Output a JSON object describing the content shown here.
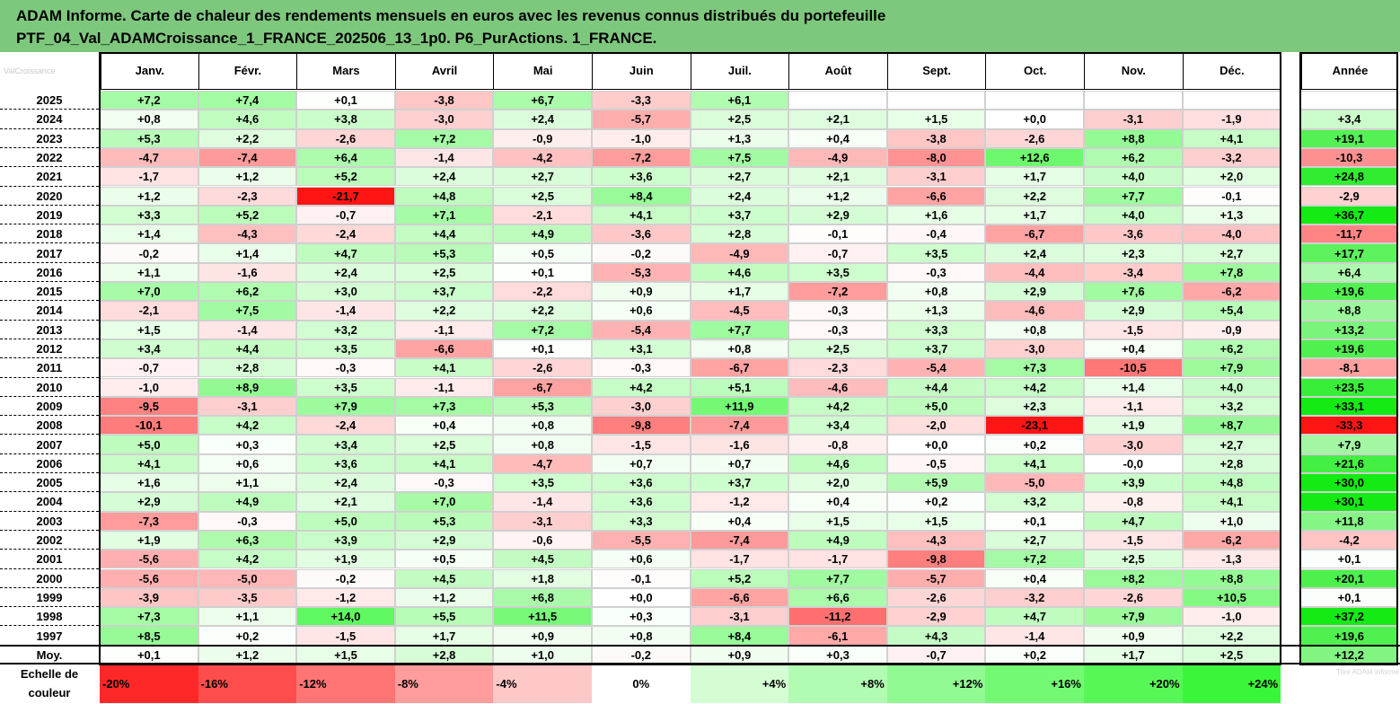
{
  "header": {
    "title_line1": "ADAM Informe. Carte de chaleur des rendements mensuels en euros avec les revenus connus distribués du portefeuille",
    "title_line2": "PTF_04_Val_ADAMCroissance_1_FRANCE_202506_13_1p0. P6_PurActions. 1_FRANCE."
  },
  "watermark_text": "ValCroissance",
  "watermark2_text": "Titre  ADAM Informe",
  "chart_data": {
    "type": "heatmap",
    "title": "ADAM Informe. Carte de chaleur des rendements mensuels en euros avec les revenus connus distribués du portefeuille PTF_04_Val_ADAMCroissance_1_FRANCE_202506_13_1p0. P6_PurActions. 1_FRANCE.",
    "columns": [
      "Janv.",
      "Févr.",
      "Mars",
      "Avril",
      "Mai",
      "Juin",
      "Juil.",
      "Août",
      "Sept.",
      "Oct.",
      "Nov.",
      "Déc."
    ],
    "year_column": "Année",
    "rows": [
      {
        "year": "2025",
        "values": [
          "+7,2",
          "+7,4",
          "+0,1",
          "-3,8",
          "+6,7",
          "-3,3",
          "+6,1",
          "",
          "",
          "",
          "",
          ""
        ],
        "annual": ""
      },
      {
        "year": "2024",
        "values": [
          "+0,8",
          "+4,6",
          "+3,8",
          "-3,0",
          "+2,4",
          "-5,7",
          "+2,5",
          "+2,1",
          "+1,5",
          "+0,0",
          "-3,1",
          "-1,9"
        ],
        "annual": "+3,4"
      },
      {
        "year": "2023",
        "values": [
          "+5,3",
          "+2,2",
          "-2,6",
          "+7,2",
          "-0,9",
          "-1,0",
          "+1,3",
          "+0,4",
          "-3,8",
          "-2,6",
          "+8,8",
          "+4,1"
        ],
        "annual": "+19,1"
      },
      {
        "year": "2022",
        "values": [
          "-4,7",
          "-7,4",
          "+6,4",
          "-1,4",
          "-4,2",
          "-7,2",
          "+7,5",
          "-4,9",
          "-8,0",
          "+12,6",
          "+6,2",
          "-3,2"
        ],
        "annual": "-10,3"
      },
      {
        "year": "2021",
        "values": [
          "-1,7",
          "+1,2",
          "+5,2",
          "+2,4",
          "+2,7",
          "+3,6",
          "+2,7",
          "+2,1",
          "-3,1",
          "+1,7",
          "+4,0",
          "+2,0"
        ],
        "annual": "+24,8"
      },
      {
        "year": "2020",
        "values": [
          "+1,2",
          "-2,3",
          "-21,7",
          "+4,8",
          "+2,5",
          "+8,4",
          "+2,4",
          "+1,2",
          "-6,6",
          "+2,2",
          "+7,7",
          "-0,1"
        ],
        "annual": "-2,9"
      },
      {
        "year": "2019",
        "values": [
          "+3,3",
          "+5,2",
          "-0,7",
          "+7,1",
          "-2,1",
          "+4,1",
          "+3,7",
          "+2,9",
          "+1,6",
          "+1,7",
          "+4,0",
          "+1,3"
        ],
        "annual": "+36,7"
      },
      {
        "year": "2018",
        "values": [
          "+1,4",
          "-4,3",
          "-2,4",
          "+4,4",
          "+4,9",
          "-3,6",
          "+2,8",
          "-0,1",
          "-0,4",
          "-6,7",
          "-3,6",
          "-4,0"
        ],
        "annual": "-11,7"
      },
      {
        "year": "2017",
        "values": [
          "-0,2",
          "+1,4",
          "+4,7",
          "+5,3",
          "+0,5",
          "-0,2",
          "-4,9",
          "-0,7",
          "+3,5",
          "+2,4",
          "+2,3",
          "+2,7"
        ],
        "annual": "+17,7"
      },
      {
        "year": "2016",
        "values": [
          "+1,1",
          "-1,6",
          "+2,4",
          "+2,5",
          "+0,1",
          "-5,3",
          "+4,6",
          "+3,5",
          "-0,3",
          "-4,4",
          "-3,4",
          "+7,8"
        ],
        "annual": "+6,4"
      },
      {
        "year": "2015",
        "values": [
          "+7,0",
          "+6,2",
          "+3,0",
          "+3,7",
          "-2,2",
          "+0,9",
          "+1,7",
          "-7,2",
          "+0,8",
          "+2,9",
          "+7,6",
          "-6,2"
        ],
        "annual": "+19,6"
      },
      {
        "year": "2014",
        "values": [
          "-2,1",
          "+7,5",
          "-1,4",
          "+2,2",
          "+2,2",
          "+0,6",
          "-4,5",
          "-0,3",
          "+1,3",
          "-4,6",
          "+2,9",
          "+5,4"
        ],
        "annual": "+8,8"
      },
      {
        "year": "2013",
        "values": [
          "+1,5",
          "-1,4",
          "+3,2",
          "-1,1",
          "+7,2",
          "-5,4",
          "+7,7",
          "-0,3",
          "+3,3",
          "+0,8",
          "-1,5",
          "-0,9"
        ],
        "annual": "+13,2"
      },
      {
        "year": "2012",
        "values": [
          "+3,4",
          "+4,4",
          "+3,5",
          "-6,6",
          "+0,1",
          "+3,1",
          "+0,8",
          "+2,5",
          "+3,7",
          "-3,0",
          "+0,4",
          "+6,2"
        ],
        "annual": "+19,6"
      },
      {
        "year": "2011",
        "values": [
          "-0,7",
          "+2,8",
          "-0,3",
          "+4,1",
          "-2,6",
          "-0,3",
          "-6,7",
          "-2,3",
          "-5,4",
          "+7,3",
          "-10,5",
          "+7,9"
        ],
        "annual": "-8,1"
      },
      {
        "year": "2010",
        "values": [
          "-1,0",
          "+8,9",
          "+3,5",
          "-1,1",
          "-6,7",
          "+4,2",
          "+5,1",
          "-4,6",
          "+4,4",
          "+4,2",
          "+1,4",
          "+4,0"
        ],
        "annual": "+23,5"
      },
      {
        "year": "2009",
        "values": [
          "-9,5",
          "-3,1",
          "+7,9",
          "+7,3",
          "+5,3",
          "-3,0",
          "+11,9",
          "+4,2",
          "+5,0",
          "+2,3",
          "-1,1",
          "+3,2"
        ],
        "annual": "+33,1"
      },
      {
        "year": "2008",
        "values": [
          "-10,1",
          "+4,2",
          "-2,4",
          "+0,4",
          "+0,8",
          "-9,8",
          "-7,4",
          "+3,4",
          "-2,0",
          "-23,1",
          "+1,9",
          "+8,7"
        ],
        "annual": "-33,3"
      },
      {
        "year": "2007",
        "values": [
          "+5,0",
          "+0,3",
          "+3,4",
          "+2,5",
          "+0,8",
          "-1,5",
          "-1,6",
          "-0,8",
          "+0,0",
          "+0,2",
          "-3,0",
          "+2,7"
        ],
        "annual": "+7,9"
      },
      {
        "year": "2006",
        "values": [
          "+4,1",
          "+0,6",
          "+3,6",
          "+4,1",
          "-4,7",
          "+0,7",
          "+0,7",
          "+4,6",
          "-0,5",
          "+4,1",
          "-0,0",
          "+2,8"
        ],
        "annual": "+21,6"
      },
      {
        "year": "2005",
        "values": [
          "+1,6",
          "+1,1",
          "+2,4",
          "-0,3",
          "+3,5",
          "+3,6",
          "+3,7",
          "+2,0",
          "+5,9",
          "-5,0",
          "+3,9",
          "+4,8"
        ],
        "annual": "+30,0"
      },
      {
        "year": "2004",
        "values": [
          "+2,9",
          "+4,9",
          "+2,1",
          "+7,0",
          "-1,4",
          "+3,6",
          "-1,2",
          "+0,4",
          "+0,2",
          "+3,2",
          "-0,8",
          "+4,1"
        ],
        "annual": "+30,1"
      },
      {
        "year": "2003",
        "values": [
          "-7,3",
          "-0,3",
          "+5,0",
          "+5,3",
          "-3,1",
          "+3,3",
          "+0,4",
          "+1,5",
          "+1,5",
          "+0,1",
          "+4,7",
          "+1,0"
        ],
        "annual": "+11,8"
      },
      {
        "year": "2002",
        "values": [
          "+1,9",
          "+6,3",
          "+3,9",
          "+2,9",
          "-0,6",
          "-5,5",
          "-7,4",
          "+4,9",
          "-4,3",
          "+2,7",
          "-1,5",
          "-6,2"
        ],
        "annual": "-4,2"
      },
      {
        "year": "2001",
        "values": [
          "-5,6",
          "+4,2",
          "+1,9",
          "+0,5",
          "+4,5",
          "+0,6",
          "-1,7",
          "-1,7",
          "-9,8",
          "+7,2",
          "+2,5",
          "-1,3"
        ],
        "annual": "+0,1"
      },
      {
        "year": "2000",
        "values": [
          "-5,6",
          "-5,0",
          "-0,2",
          "+4,5",
          "+1,8",
          "-0,1",
          "+5,2",
          "+7,7",
          "-5,7",
          "+0,4",
          "+8,2",
          "+8,8"
        ],
        "annual": "+20,1"
      },
      {
        "year": "1999",
        "values": [
          "-3,9",
          "-3,5",
          "-1,2",
          "+1,2",
          "+6,8",
          "+0,0",
          "-6,6",
          "+6,6",
          "-2,6",
          "-3,2",
          "-2,6",
          "+10,5"
        ],
        "annual": "+0,1"
      },
      {
        "year": "1998",
        "values": [
          "+7,3",
          "+1,1",
          "+14,0",
          "+5,5",
          "+11,5",
          "+0,3",
          "-3,1",
          "-11,2",
          "-2,9",
          "+4,7",
          "+7,9",
          "-1,0"
        ],
        "annual": "+37,2"
      },
      {
        "year": "1997",
        "values": [
          "+8,5",
          "+0,2",
          "-1,5",
          "+1,7",
          "+0,9",
          "+0,8",
          "+8,4",
          "-6,1",
          "+4,3",
          "-1,4",
          "+0,9",
          "+2,2"
        ],
        "annual": "+19,6"
      }
    ],
    "average_row": {
      "label": "Moy.",
      "values": [
        "+0,1",
        "+1,2",
        "+1,5",
        "+2,8",
        "+1,0",
        "-0,2",
        "+0,9",
        "+0,3",
        "-0,7",
        "+0,2",
        "+1,7",
        "+2,5"
      ],
      "annual": "+12,2"
    },
    "color_scale": {
      "label_line1": "Echelle de",
      "label_line2": "couleur",
      "steps": [
        "-20%",
        "-16%",
        "-12%",
        "-8%",
        "-4%",
        "0%",
        "+4%",
        "+8%",
        "+12%",
        "+16%",
        "+20%",
        "+24%"
      ],
      "negative_color": "#ff0000",
      "neutral_color": "#ffffff",
      "positive_color": "#00ff00"
    }
  }
}
